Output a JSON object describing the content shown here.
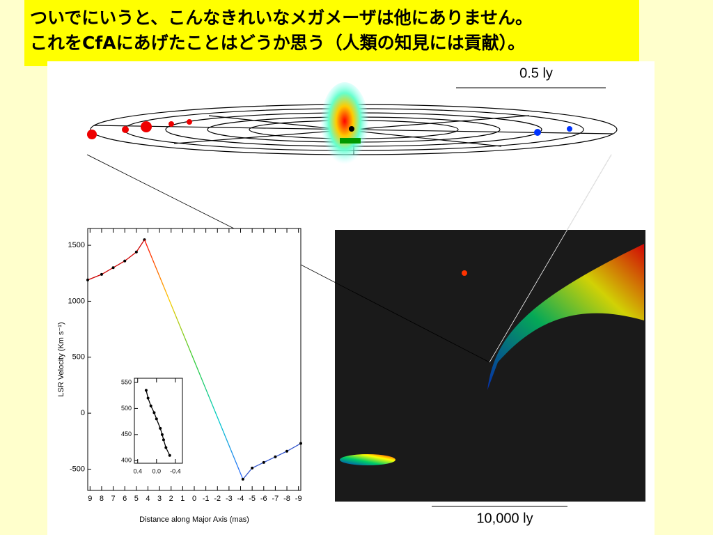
{
  "slide": {
    "title_lines": [
      "ついでにいうと、こんなきれいなメガメーザは他にありません。",
      "これをCfAにあげたことはどうか思う（人類の知見には貢献）。"
    ],
    "scale_small": "0.5 ly",
    "scale_large": "10,000 ly"
  },
  "chart_data": [
    {
      "type": "line",
      "x_label": "Distance along Major Axis (mas)",
      "y_label": "LSR Velocity (Km s⁻¹)",
      "xlim": [
        9.2,
        -9.2
      ],
      "ylim": [
        -690,
        1650
      ],
      "xticks": [
        9,
        8,
        7,
        6,
        5,
        4,
        3,
        2,
        1,
        0,
        -1,
        -2,
        -3,
        -4,
        -5,
        -6,
        -7,
        -8,
        -9
      ],
      "yticks": [
        1500,
        1000,
        500,
        0,
        -500
      ],
      "series": [
        {
          "color": "#cc0000",
          "x": [
            9.2,
            8,
            7,
            6,
            5,
            4.3
          ],
          "values": [
            1190,
            1240,
            1300,
            1360,
            1440,
            1550
          ]
        },
        {
          "color": [
            "#ff0000",
            "#ffcc00",
            "#33cc33",
            "#00cccc",
            "#3366ff"
          ],
          "x": [
            4.3,
            -4.2
          ],
          "values": [
            1550,
            -590
          ]
        },
        {
          "color": "#3355cc",
          "x": [
            -4.2,
            -5,
            -6,
            -7,
            -8,
            -9.2
          ],
          "values": [
            -590,
            -490,
            -440,
            -390,
            -340,
            -270
          ]
        }
      ]
    },
    {
      "type": "line",
      "xlim": [
        0.47,
        -0.55
      ],
      "ylim": [
        395,
        558
      ],
      "xticks": [
        0.4,
        {
          "value": 0,
          "label": "0.0"
        },
        -0.4
      ],
      "yticks": [
        550,
        500,
        450,
        400
      ],
      "series": [
        {
          "color": "#000000",
          "x": [
            0.22,
            0.18,
            0.12,
            0.05,
            0.0,
            -0.08,
            -0.12,
            -0.15,
            -0.2,
            -0.28
          ],
          "values": [
            535,
            520,
            505,
            492,
            480,
            462,
            450,
            440,
            425,
            410
          ]
        }
      ]
    }
  ]
}
